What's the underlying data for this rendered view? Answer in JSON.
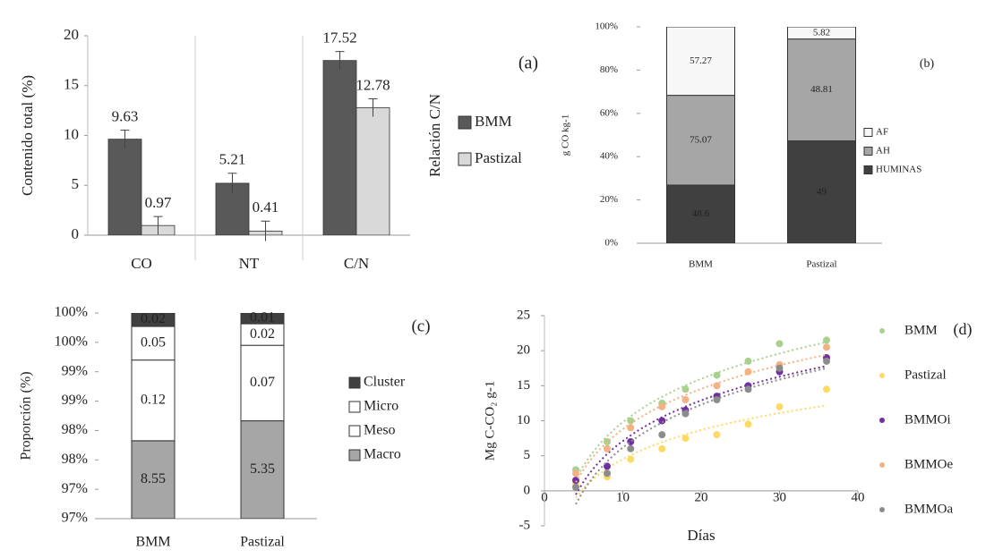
{
  "chart_data": [
    {
      "type": "bar",
      "panel_label": "(a)",
      "ylabel": "Contenido total (%)",
      "y2label": "Relación C/N",
      "categories": [
        "CO",
        "NT",
        "C/N"
      ],
      "series": [
        {
          "name": "BMM",
          "color": "#595959",
          "values": [
            9.63,
            5.21,
            17.52
          ],
          "errors": [
            0.9,
            1.0,
            0.9
          ]
        },
        {
          "name": "Pastizal",
          "color": "#d9d9d9",
          "values": [
            0.97,
            0.41,
            12.78
          ],
          "errors": [
            0.9,
            1.0,
            0.9
          ]
        }
      ],
      "ylim": [
        0,
        20
      ],
      "yticks": [
        0,
        5,
        10,
        15,
        20
      ]
    },
    {
      "type": "bar",
      "stack": "percent",
      "panel_label": "(b)",
      "ylabel": "g CO kg-1",
      "categories": [
        "BMM",
        "Pastizal"
      ],
      "series": [
        {
          "name": "HUMINAS",
          "color": "#404040",
          "values": [
            48.6,
            49.0
          ]
        },
        {
          "name": "AH",
          "color": "#a6a6a6",
          "values": [
            75.07,
            48.81
          ]
        },
        {
          "name": "AF",
          "color": "#f7f7f7",
          "values": [
            57.27,
            5.82
          ]
        }
      ],
      "ylim": [
        0,
        100
      ],
      "yticks": [
        {
          "value": 0,
          "label": "0%"
        },
        {
          "value": 20,
          "label": "20%"
        },
        {
          "value": 40,
          "label": "40%"
        },
        {
          "value": 60,
          "label": "60%"
        },
        {
          "value": 80,
          "label": "80%"
        },
        {
          "value": 100,
          "label": "100%"
        }
      ]
    },
    {
      "type": "bar",
      "stack": "percent",
      "panel_label": "(c)",
      "ylabel": "Proporción (%)",
      "categories": [
        "BMM",
        "Pastizal"
      ],
      "series": [
        {
          "name": "Macro",
          "color": "#a6a6a6",
          "values": [
            8.55,
            5.35
          ]
        },
        {
          "name": "Meso",
          "color": "#ffffff",
          "values": [
            0.12,
            0.07
          ]
        },
        {
          "name": "Micro",
          "color": "#ffffff",
          "values": [
            0.05,
            0.02
          ]
        },
        {
          "name": "Cluster",
          "color": "#404040",
          "values": [
            0.02,
            0.01
          ]
        }
      ],
      "ylim": [
        96.5,
        100
      ],
      "yticks": [
        {
          "value": 96.5,
          "label": "97%"
        },
        {
          "value": 97,
          "label": "97%"
        },
        {
          "value": 97.5,
          "label": "98%"
        },
        {
          "value": 98,
          "label": "98%"
        },
        {
          "value": 98.5,
          "label": "99%"
        },
        {
          "value": 99,
          "label": "99%"
        },
        {
          "value": 99.5,
          "label": "100%"
        },
        {
          "value": 100,
          "label": "100%"
        }
      ]
    },
    {
      "type": "scatter",
      "panel_label": "(d)",
      "xlabel": "Días",
      "ylabel": "Mg C-CO₂ g-1",
      "trendline": "log",
      "x": [
        4,
        8,
        11,
        15,
        18,
        22,
        26,
        30,
        36
      ],
      "series": [
        {
          "name": "BMM",
          "color": "#a9d18e",
          "values": [
            3,
            7,
            10,
            12.5,
            14.5,
            16.5,
            18.5,
            21,
            21.5
          ]
        },
        {
          "name": "Pastizal",
          "color": "#ffd966",
          "values": [
            1,
            2,
            4.5,
            6,
            7.5,
            8,
            9.5,
            12,
            14.5
          ]
        },
        {
          "name": "BMMOi",
          "color": "#7030a0",
          "values": [
            1.5,
            3.5,
            7,
            10,
            11.5,
            13.5,
            15,
            17,
            19
          ]
        },
        {
          "name": "BMMOe",
          "color": "#f4b183",
          "values": [
            2.5,
            6,
            9,
            12,
            13,
            15,
            17,
            18,
            20.5
          ]
        },
        {
          "name": "BMMOa",
          "color": "#8c8c8c",
          "values": [
            0.5,
            2.5,
            6,
            8,
            11,
            13,
            14.5,
            17.5,
            18.5
          ]
        }
      ],
      "xlim": [
        0,
        40
      ],
      "xticks": [
        0,
        10,
        20,
        30,
        40
      ],
      "ylim": [
        -5,
        25
      ],
      "yticks": [
        -5,
        0,
        5,
        10,
        15,
        20,
        25
      ]
    }
  ]
}
